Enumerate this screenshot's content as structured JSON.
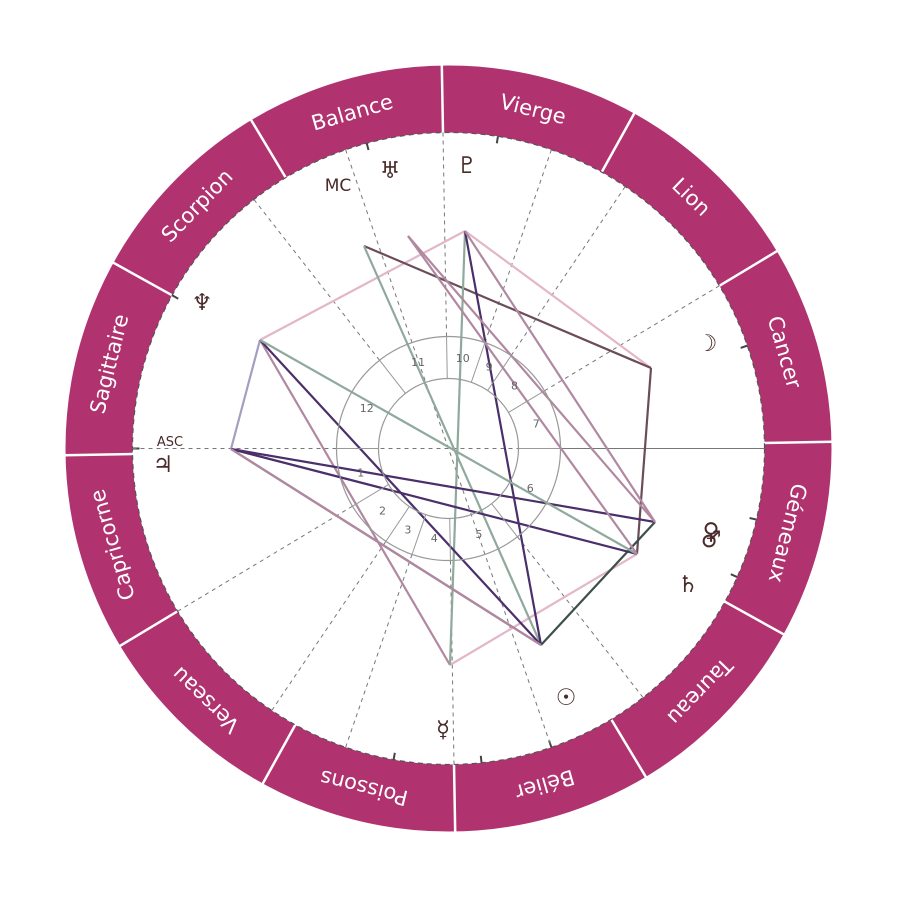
{
  "colors": {
    "ring": "#b0336f",
    "ring_divider": "#ffffff",
    "sign_text": "#ffffff",
    "glyph": "#4a2a2a",
    "cusp": "#777777",
    "inner_circle": "#999999"
  },
  "signs": [
    "Bélier",
    "Taureau",
    "Gémeaux",
    "Cancer",
    "Lion",
    "Vierge",
    "Balance",
    "Scorpion",
    "Sagittaire",
    "Capricorne",
    "Verseau",
    "Poissons"
  ],
  "houses": [
    "1",
    "2",
    "3",
    "4",
    "5",
    "6",
    "7",
    "8",
    "9",
    "10",
    "11",
    "12"
  ],
  "angles": {
    "asc": "ASC",
    "mc": "MC"
  },
  "planets": [
    {
      "id": "sun",
      "name": "sun-icon",
      "glyph": "☉",
      "lon": 18
    },
    {
      "id": "mercury",
      "name": "mercury-icon",
      "glyph": "☿",
      "lon": 349
    },
    {
      "id": "saturn",
      "name": "saturn-icon",
      "glyph": "♄",
      "lon": 65
    },
    {
      "id": "venus",
      "name": "venus-icon",
      "glyph": "♀",
      "lon": 76
    },
    {
      "id": "mars",
      "name": "mars-icon",
      "glyph": "♂",
      "lon": 76
    },
    {
      "id": "moon",
      "name": "moon-icon",
      "glyph": "☽",
      "lon": 108
    },
    {
      "id": "pluto",
      "name": "pluto-icon",
      "glyph": "♇",
      "lon": 170
    },
    {
      "id": "uranus",
      "name": "uranus-icon",
      "glyph": "♅",
      "lon": 194
    },
    {
      "id": "neptune",
      "name": "neptune-icon",
      "glyph": "♆",
      "lon": 240
    },
    {
      "id": "jupiter",
      "name": "jupiter-icon",
      "glyph": "♃",
      "lon": 269
    }
  ]
}
